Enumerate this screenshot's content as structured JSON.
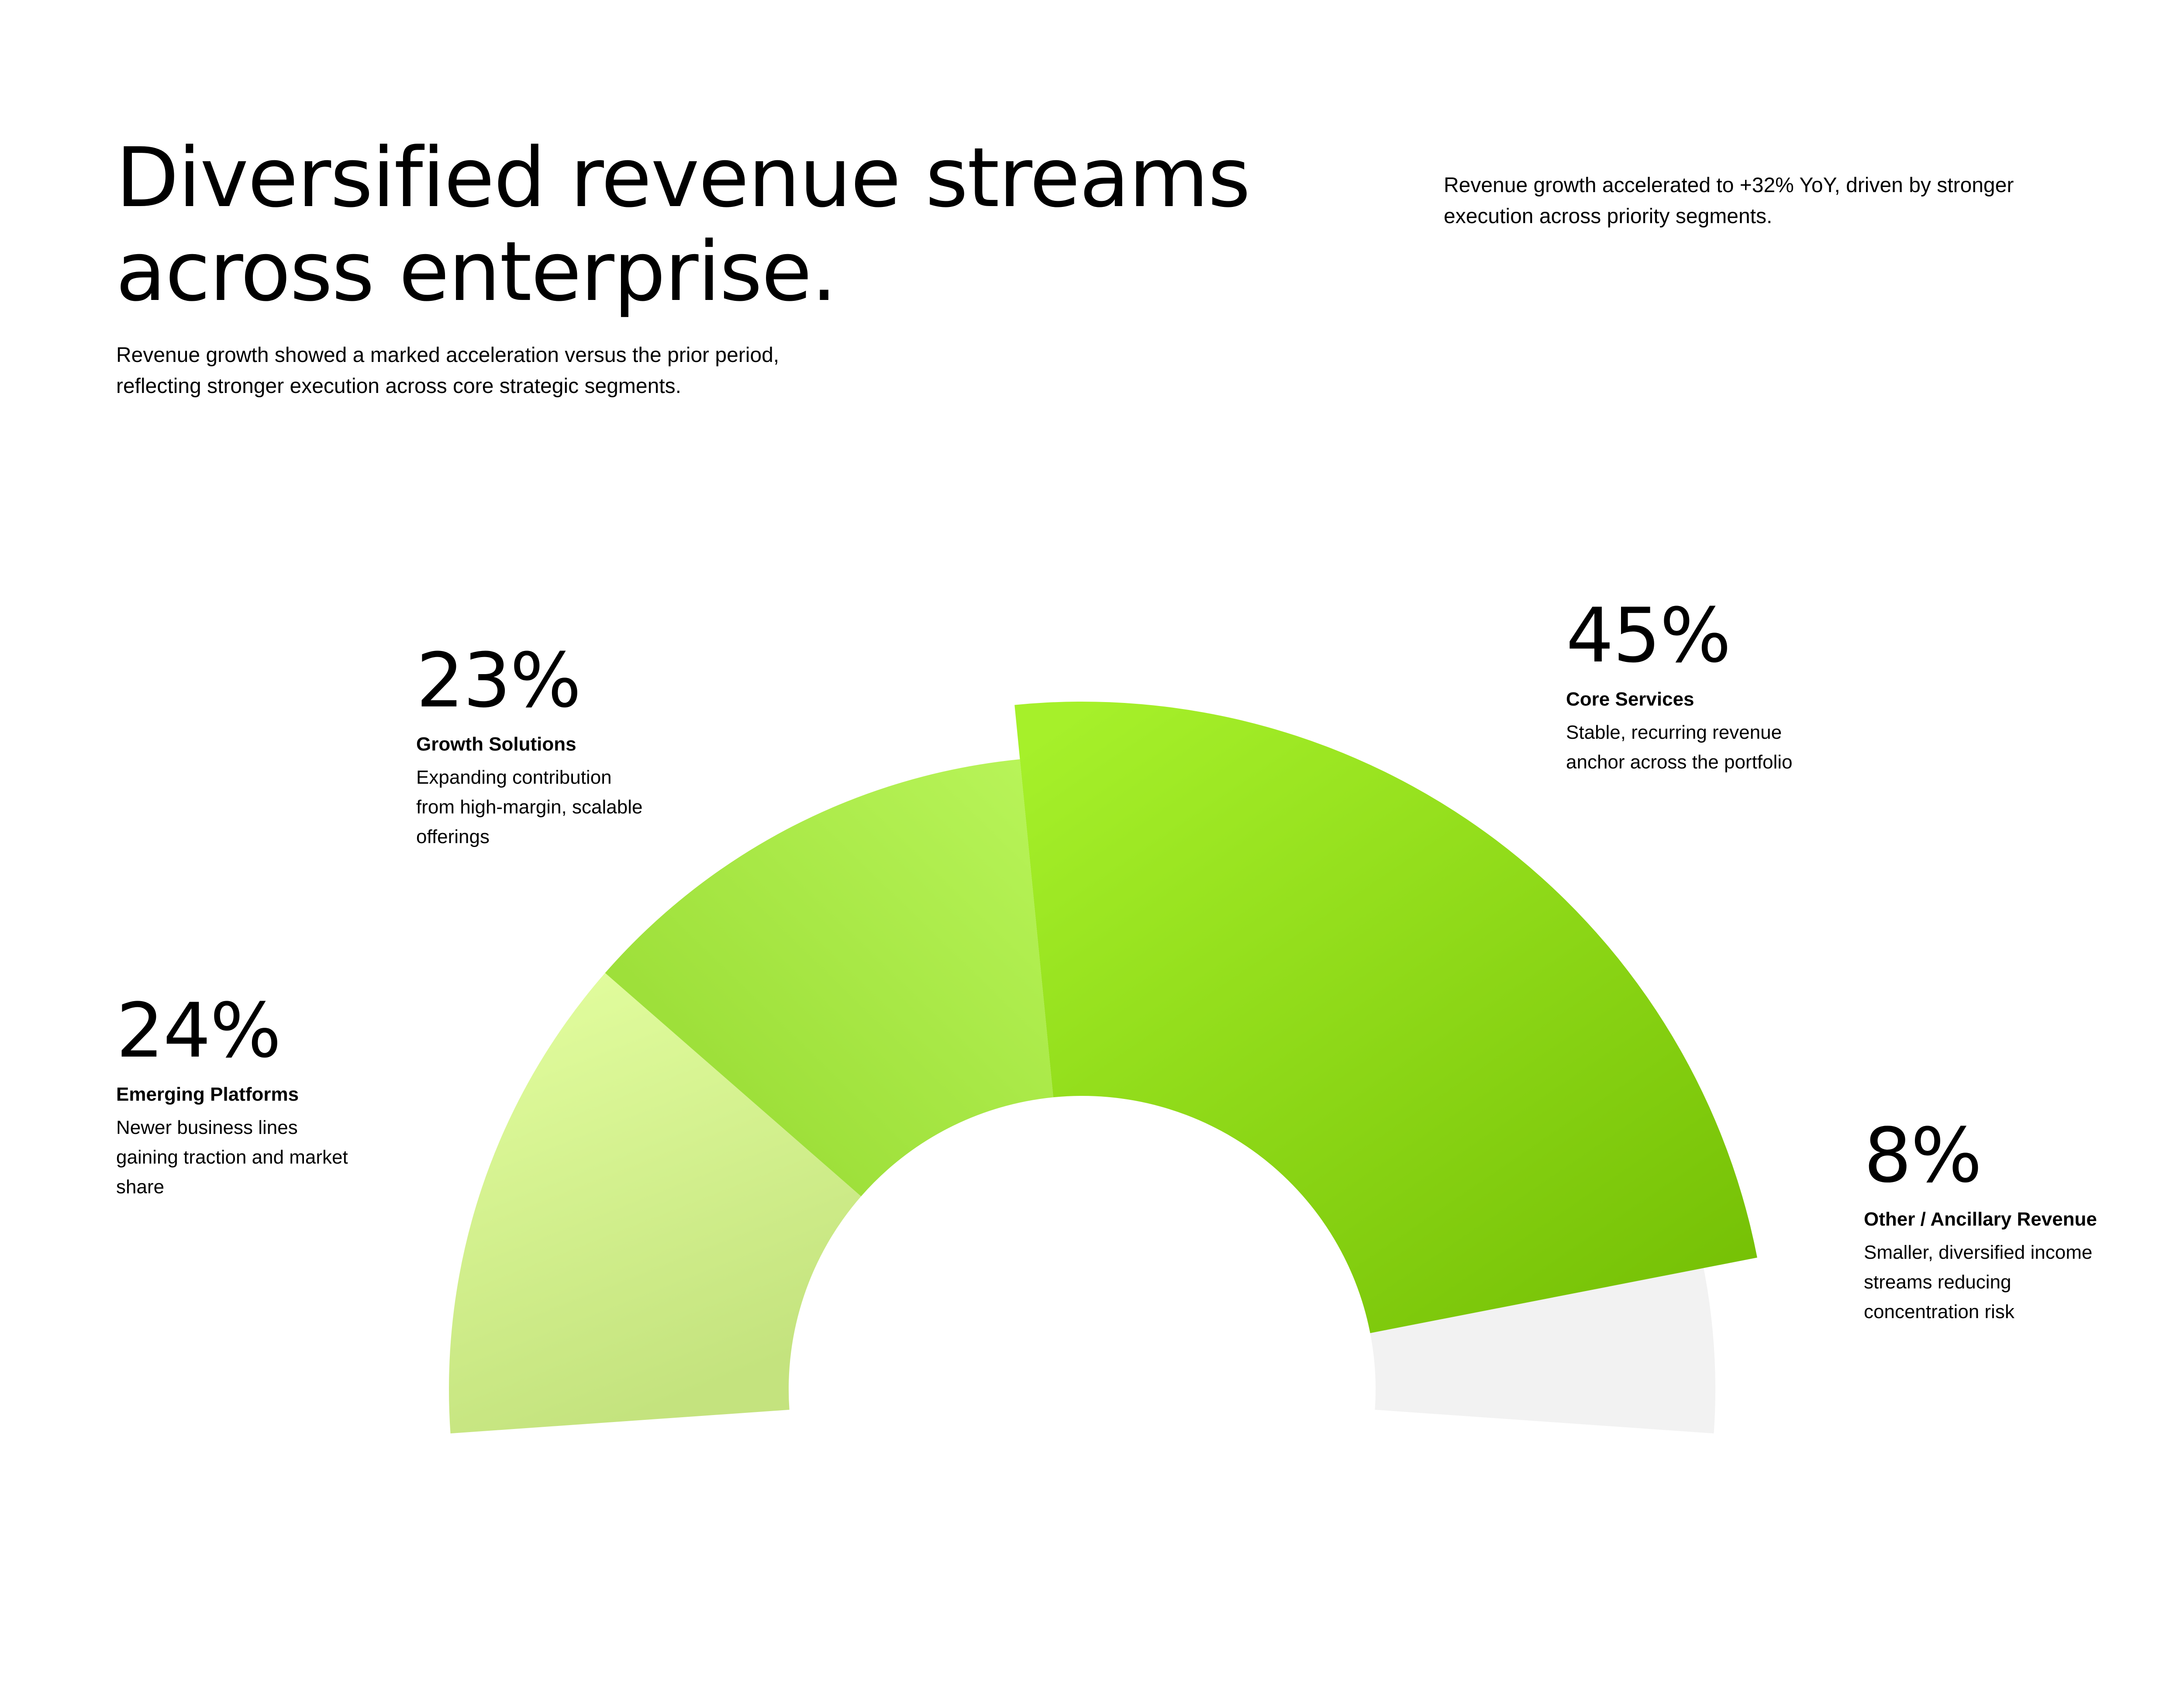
{
  "header": {
    "headline_line1": "Diversified revenue streams",
    "headline_line2": "across enterprise.",
    "subtitle_line1": "Revenue growth showed a marked acceleration versus the prior period,",
    "subtitle_line2": "reflecting stronger execution across core strategic segments.",
    "side_note_line1": "Revenue growth accelerated to +32% YoY, driven by stronger",
    "side_note_line2": "execution across priority segments."
  },
  "chart_data": {
    "type": "pie",
    "variant": "half-donut",
    "title": "",
    "segments": [
      {
        "name": "Emerging Platforms",
        "value": 24,
        "label": "24%",
        "desc_line1": "Newer business lines",
        "desc_line2": "gaining traction and market",
        "desc_line3": "share",
        "color_start": "#e4ffa0",
        "color_end": "#c4e37e"
      },
      {
        "name": "Growth Solutions",
        "value": 23,
        "label": "23%",
        "desc_line1": "Expanding contribution",
        "desc_line2": "from high-margin, scalable",
        "desc_line3": "offerings",
        "color_start": "#b9f55a",
        "color_end": "#94d82e"
      },
      {
        "name": "Core Services",
        "value": 45,
        "label": "45%",
        "desc_line1": "Stable, recurring revenue",
        "desc_line2": "anchor across the portfolio",
        "color_start": "#a6f02a",
        "color_end": "#75c005",
        "emphasized": true
      },
      {
        "name": "Other / Ancillary Revenue",
        "value": 8,
        "label": "8%",
        "desc_line1": "Smaller, diversified income",
        "desc_line2": "streams reducing",
        "desc_line3": "concentration risk",
        "color_start": "#f2f2f2",
        "color_end": "#f2f2f2"
      }
    ]
  }
}
